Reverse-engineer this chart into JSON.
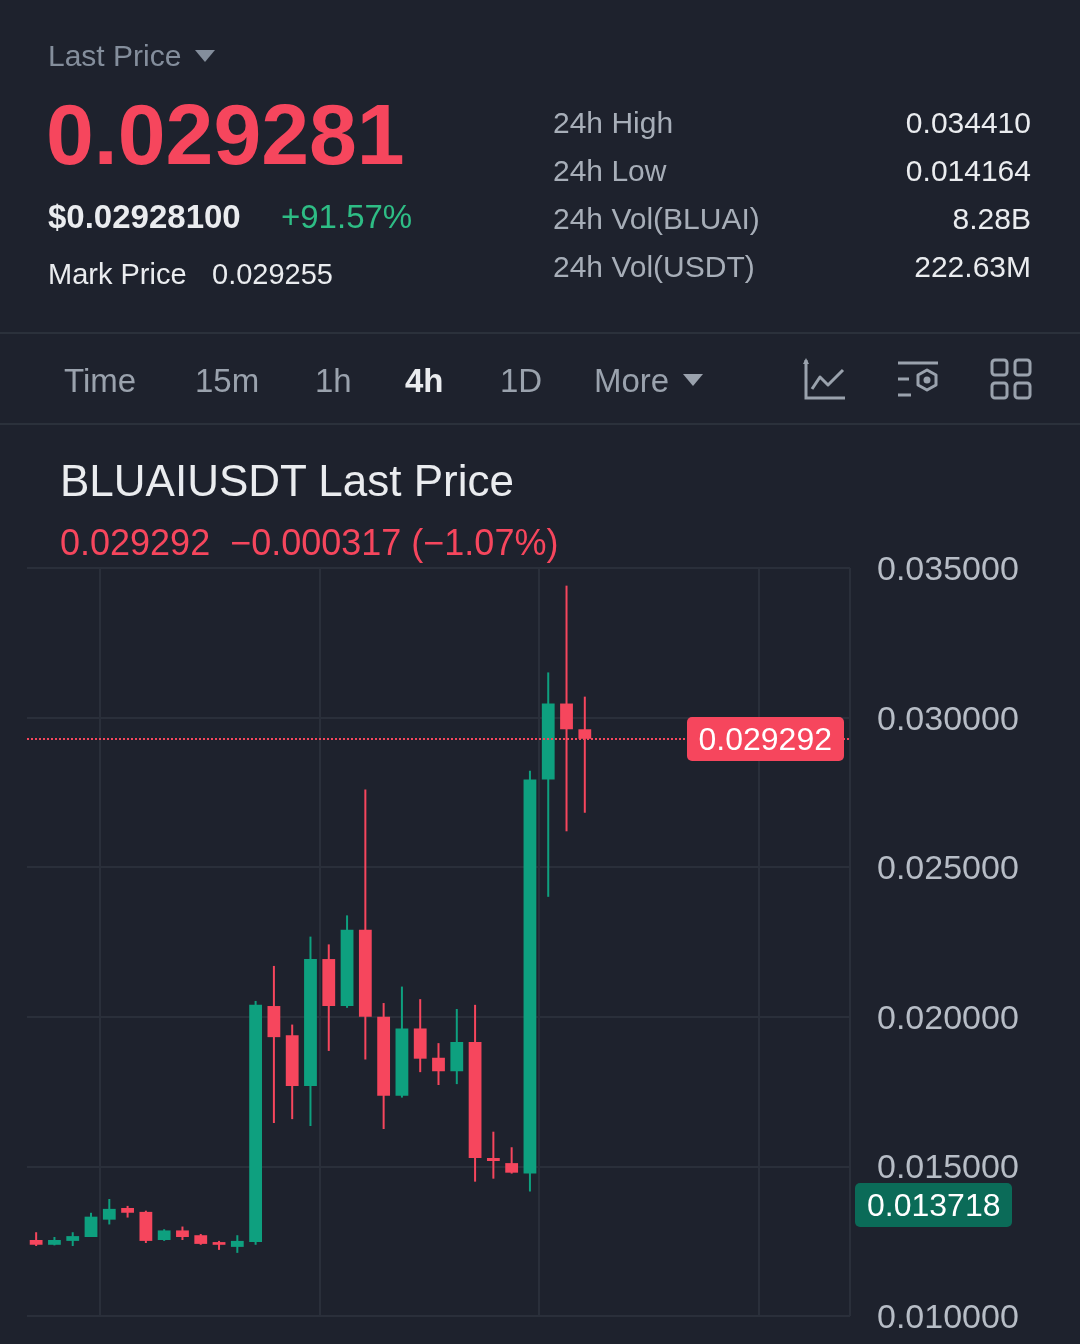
{
  "chart_data": [
    {
      "type": "other",
      "title": "Last Price",
      "annotations": [
        "0.029281",
        "$0.02928100",
        "+91.57%",
        "Mark Price",
        "0.029255",
        "24h High",
        "0.034410",
        "24h Low",
        "0.014164",
        "24h Vol(BLUAI)",
        "8.28B",
        "24h Vol(USDT)",
        "222.63M",
        "Time",
        "15m",
        "1h",
        "4h",
        "1D",
        "More"
      ]
    },
    {
      "type": "candlestick",
      "title": "BLUAIUSDT Last Price",
      "subtitle": "0.029292  −0.000317 (−1.07%)",
      "categories": [
        null,
        null,
        null,
        null,
        null,
        null,
        null,
        null,
        null,
        null,
        null,
        null,
        null,
        null,
        null,
        null,
        null,
        null,
        null,
        null,
        null,
        null,
        null,
        null,
        null,
        null,
        null,
        null,
        null,
        null,
        null,
        null,
        null,
        null,
        null,
        null,
        null,
        null,
        null,
        null,
        null,
        null,
        null,
        null,
        null
      ],
      "ohlc": [
        [
          0.01254,
          0.0128,
          0.01234,
          0.01238
        ],
        [
          0.01238,
          0.01264,
          0.01236,
          0.01254
        ],
        [
          0.01251,
          0.0128,
          0.01234,
          0.01267
        ],
        [
          0.01264,
          0.01345,
          0.01264,
          0.01332
        ],
        [
          0.01322,
          0.01391,
          0.01306,
          0.01358
        ],
        [
          0.01361,
          0.01368,
          0.01329,
          0.01345
        ],
        [
          0.01348,
          0.01352,
          0.01244,
          0.01251
        ],
        [
          0.01254,
          0.0129,
          0.01251,
          0.01286
        ],
        [
          0.01286,
          0.01299,
          0.01254,
          0.01264
        ],
        [
          0.0127,
          0.01274,
          0.01238,
          0.01241
        ],
        [
          0.01247,
          0.01251,
          0.01221,
          0.01238
        ],
        [
          0.01231,
          0.0127,
          0.01211,
          0.01251
        ],
        [
          0.01247,
          0.02053,
          0.01238,
          0.0204
        ],
        [
          0.02036,
          0.0217,
          0.01645,
          0.01932
        ],
        [
          0.01938,
          0.01974,
          0.01658,
          0.01769
        ],
        [
          0.01769,
          0.02268,
          0.01635,
          0.02193
        ],
        [
          0.02193,
          0.02242,
          0.01886,
          0.02036
        ],
        [
          0.02036,
          0.02339,
          0.0203,
          0.02291
        ],
        [
          0.02291,
          0.0276,
          0.01857,
          0.02
        ],
        [
          0.02,
          0.02046,
          0.01625,
          0.01736
        ],
        [
          0.01736,
          0.02101,
          0.0173,
          0.01961
        ],
        [
          0.01961,
          0.02059,
          0.01815,
          0.0186
        ],
        [
          0.01863,
          0.01912,
          0.01772,
          0.01818
        ],
        [
          0.01818,
          0.02026,
          0.01775,
          0.01916
        ],
        [
          0.01916,
          0.0204,
          0.01449,
          0.01528
        ],
        [
          0.01528,
          0.01616,
          0.01459,
          0.01518
        ],
        [
          0.01511,
          0.01564,
          0.01476,
          0.01479
        ],
        [
          0.01476,
          0.02822,
          0.01416,
          0.02793
        ],
        [
          0.02793,
          0.03151,
          0.02401,
          0.03047
        ],
        [
          0.03047,
          0.03441,
          0.0262,
          0.02961
        ],
        [
          0.02961,
          0.0307,
          0.02682,
          0.029292
        ],
        null,
        null,
        null,
        null,
        null,
        null,
        null,
        null,
        null,
        null,
        null,
        null,
        null,
        null
      ],
      "colors": [
        "#f6465d",
        "#0ea07f",
        "#0ea07f",
        "#0ea07f",
        "#0ea07f",
        "#f6465d",
        "#f6465d",
        "#0ea07f",
        "#f6465d",
        "#f6465d",
        "#f6465d",
        "#0ea07f",
        "#0ea07f",
        "#f6465d",
        "#f6465d",
        "#0ea07f",
        "#f6465d",
        "#0ea07f",
        "#f6465d",
        "#f6465d",
        "#0ea07f",
        "#f6465d",
        "#f6465d",
        "#0ea07f",
        "#f6465d",
        "#f6465d",
        "#f6465d",
        "#0ea07f",
        "#0ea07f",
        "#f6465d",
        "#f6465d",
        null,
        null,
        null,
        null,
        null,
        null,
        null,
        null,
        null,
        null,
        null,
        null,
        null,
        null
      ],
      "ylim": [
        0.01,
        0.035
      ],
      "yticks": [
        {
          "value": 0.01,
          "label": "0.010000"
        },
        {
          "value": 0.015,
          "label": "0.015000"
        },
        {
          "value": 0.02,
          "label": "0.020000"
        },
        {
          "value": 0.025,
          "label": "0.025000"
        },
        {
          "value": 0.03,
          "label": "0.030000"
        },
        {
          "value": 0.035,
          "label": "0.035000"
        }
      ],
      "grid": true,
      "tick_labels": "y",
      "ref_lines": [
        {
          "axis": "y",
          "value": 0.029292,
          "label": "0.029292",
          "color": "#f6465d",
          "line_style": "dotted"
        }
      ],
      "annotations": [
        "0.013718"
      ]
    }
  ]
}
